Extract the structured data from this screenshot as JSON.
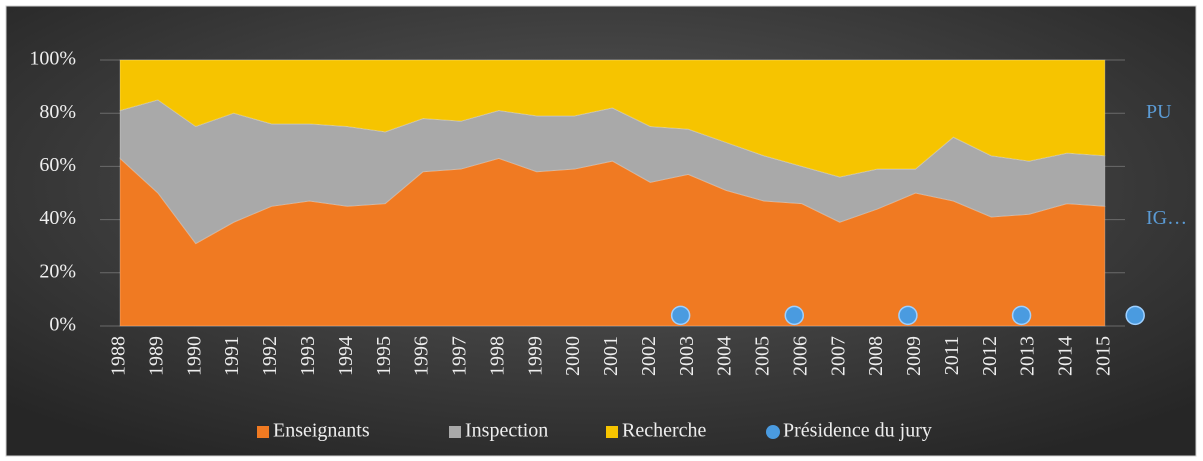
{
  "chart_data": {
    "type": "area",
    "categories": [
      "1988",
      "1989",
      "1990",
      "1991",
      "1992",
      "1993",
      "1994",
      "1995",
      "1996",
      "1997",
      "1998",
      "1999",
      "2000",
      "2001",
      "2002",
      "2003",
      "2004",
      "2005",
      "2006",
      "2007",
      "2008",
      "2009",
      "2011",
      "2012",
      "2013",
      "2014",
      "2015"
    ],
    "series": [
      {
        "name": "Enseignants",
        "color": "#f07a22",
        "values": [
          63,
          50,
          31,
          39,
          45,
          47,
          45,
          46,
          58,
          59,
          63,
          58,
          59,
          62,
          54,
          57,
          51,
          47,
          46,
          39,
          44,
          50,
          47,
          41,
          42,
          46,
          45
        ]
      },
      {
        "name": "Inspection",
        "color": "#a9a9a9",
        "values": [
          18,
          35,
          44,
          41,
          31,
          29,
          30,
          27,
          20,
          18,
          18,
          21,
          20,
          20,
          21,
          17,
          18,
          17,
          14,
          17,
          15,
          9,
          24,
          23,
          20,
          19,
          19
        ]
      },
      {
        "name": "Recherche",
        "color": "#f6c400",
        "values": [
          19,
          15,
          25,
          20,
          24,
          24,
          25,
          27,
          22,
          23,
          19,
          21,
          21,
          18,
          25,
          26,
          31,
          36,
          40,
          44,
          41,
          41,
          29,
          36,
          38,
          35,
          36
        ]
      },
      {
        "name": "Présidence du jury",
        "type": "scatter",
        "color": "#4a9be0",
        "values": [
          null,
          null,
          null,
          null,
          null,
          null,
          null,
          null,
          null,
          null,
          null,
          null,
          null,
          null,
          4,
          null,
          null,
          4,
          null,
          null,
          4,
          null,
          null,
          4,
          null,
          null,
          4
        ]
      }
    ],
    "ylim": [
      0,
      100
    ],
    "yticks": [
      {
        "value": 0,
        "label": "0%"
      },
      {
        "value": 20,
        "label": "20%"
      },
      {
        "value": 40,
        "label": "40%"
      },
      {
        "value": 60,
        "label": "60%"
      },
      {
        "value": 80,
        "label": "80%"
      },
      {
        "value": 100,
        "label": "100%"
      }
    ],
    "annotations": [
      {
        "text": "PU",
        "y": 80
      },
      {
        "text": "IG…",
        "y": 40
      }
    ],
    "grid": true,
    "stacked": true,
    "legend": "bottom"
  }
}
